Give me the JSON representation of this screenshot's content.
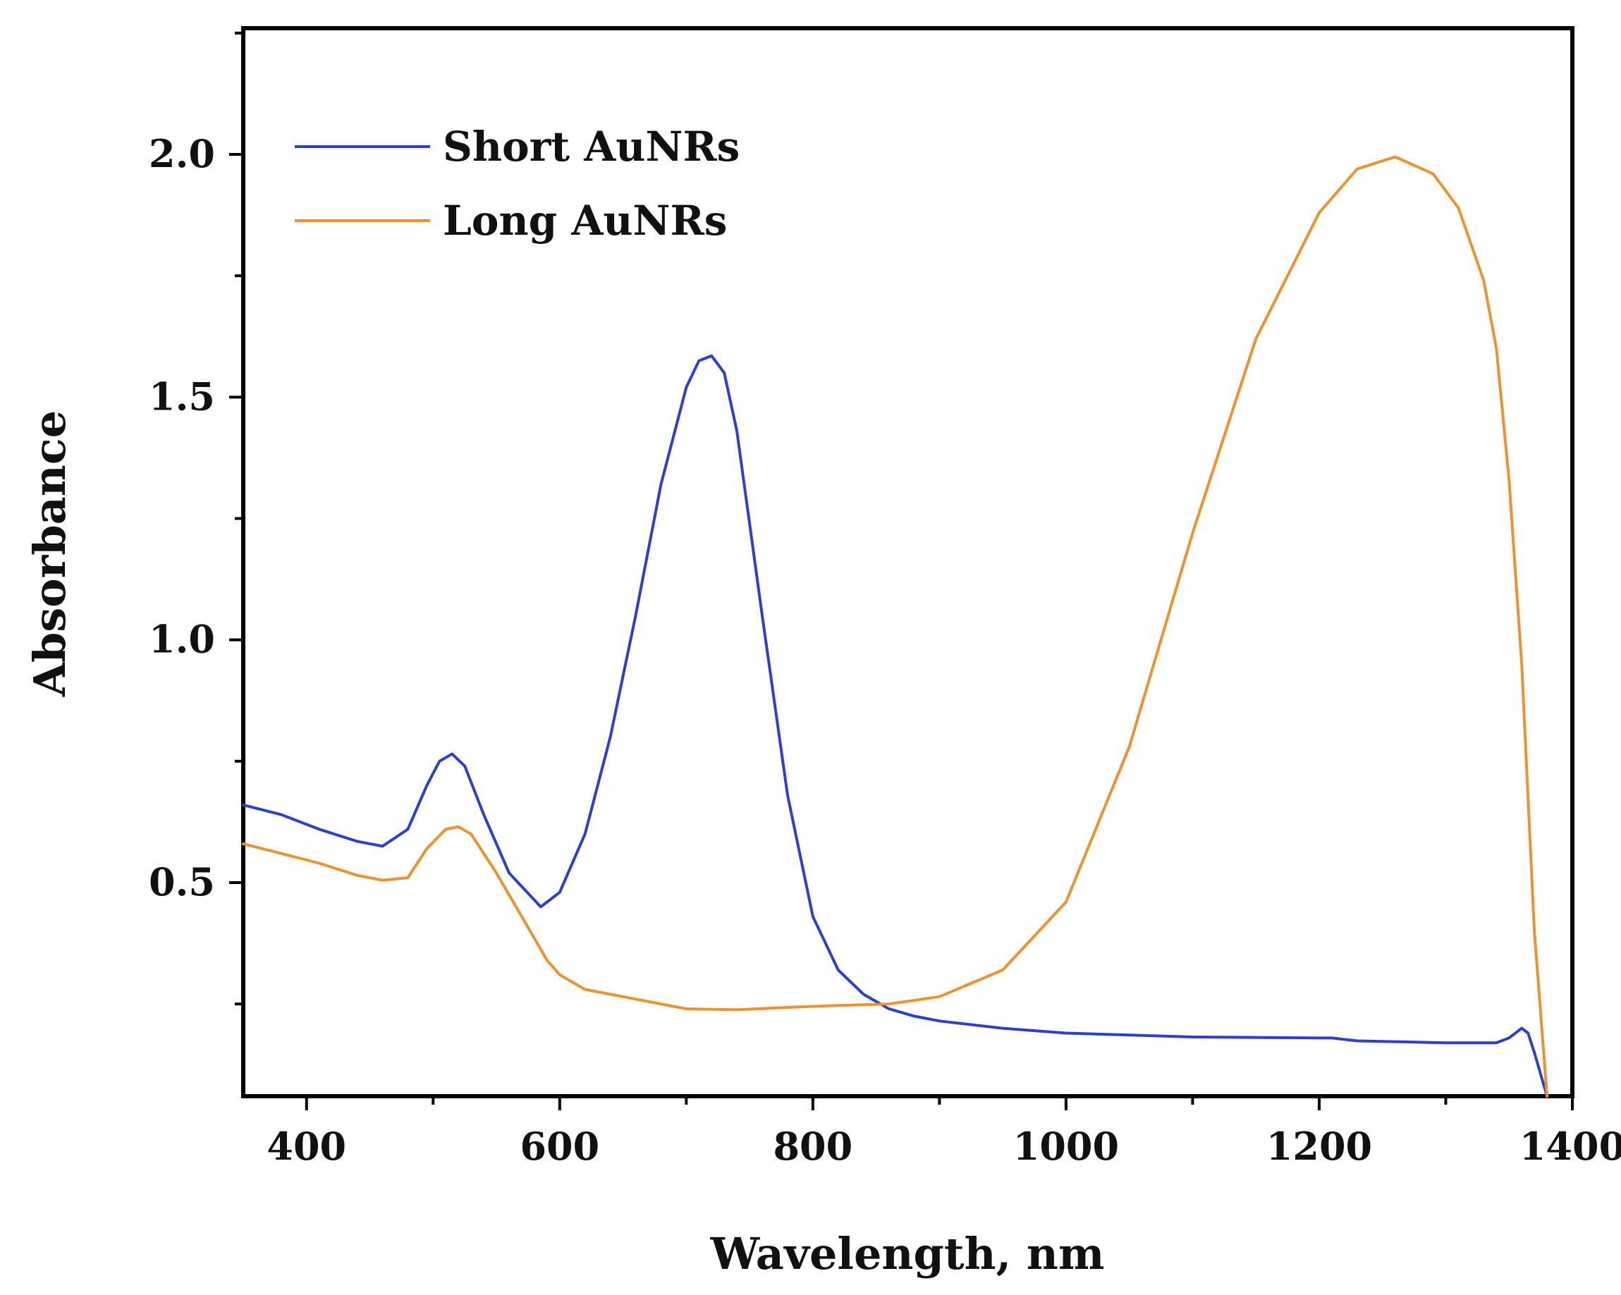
{
  "chart_data": {
    "type": "line",
    "title": "",
    "xlabel": "Wavelength, nm",
    "ylabel": "Absorbance",
    "xlim": [
      350,
      1400
    ],
    "ylim": [
      0.06,
      2.26
    ],
    "x_ticks": [
      400,
      600,
      800,
      1000,
      1200,
      1400
    ],
    "x_minor_ticks": [
      500,
      700,
      900,
      1100,
      1300
    ],
    "y_ticks": [
      0.5,
      1.0,
      1.5,
      2.0
    ],
    "y_tick_labels": [
      "0.5",
      "1.0",
      "1.5",
      "2.0"
    ],
    "y_minor_ticks": [
      0.25,
      0.75,
      1.25,
      1.75,
      2.25
    ],
    "grid": false,
    "legend_position": "top-left",
    "series": [
      {
        "name": "Short AuNRs",
        "color": "#2b3fd4",
        "x": [
          350,
          380,
          410,
          440,
          460,
          480,
          495,
          505,
          515,
          525,
          540,
          560,
          585,
          600,
          620,
          640,
          660,
          680,
          700,
          710,
          720,
          730,
          740,
          760,
          780,
          800,
          820,
          840,
          860,
          880,
          900,
          950,
          1000,
          1100,
          1200,
          1210,
          1230,
          1300,
          1340,
          1350,
          1360,
          1365,
          1370,
          1380
        ],
        "y": [
          0.66,
          0.64,
          0.61,
          0.585,
          0.575,
          0.61,
          0.7,
          0.75,
          0.765,
          0.74,
          0.64,
          0.52,
          0.45,
          0.48,
          0.6,
          0.8,
          1.05,
          1.32,
          1.52,
          1.575,
          1.585,
          1.55,
          1.43,
          1.05,
          0.68,
          0.43,
          0.32,
          0.27,
          0.24,
          0.225,
          0.215,
          0.2,
          0.19,
          0.182,
          0.18,
          0.18,
          0.174,
          0.17,
          0.17,
          0.18,
          0.2,
          0.19,
          0.15,
          0.06
        ]
      },
      {
        "name": "Long AuNRs",
        "color": "#f0922b",
        "x": [
          350,
          380,
          410,
          440,
          460,
          480,
          495,
          510,
          520,
          530,
          550,
          570,
          590,
          600,
          620,
          660,
          700,
          740,
          780,
          820,
          860,
          900,
          950,
          1000,
          1050,
          1100,
          1150,
          1200,
          1230,
          1260,
          1290,
          1310,
          1330,
          1340,
          1350,
          1360,
          1370,
          1380
        ],
        "y": [
          0.58,
          0.56,
          0.54,
          0.515,
          0.505,
          0.51,
          0.57,
          0.61,
          0.615,
          0.6,
          0.52,
          0.43,
          0.34,
          0.31,
          0.28,
          0.26,
          0.24,
          0.238,
          0.243,
          0.247,
          0.25,
          0.265,
          0.32,
          0.46,
          0.78,
          1.22,
          1.62,
          1.88,
          1.97,
          1.995,
          1.96,
          1.89,
          1.74,
          1.6,
          1.33,
          0.95,
          0.4,
          0.06
        ]
      }
    ]
  }
}
